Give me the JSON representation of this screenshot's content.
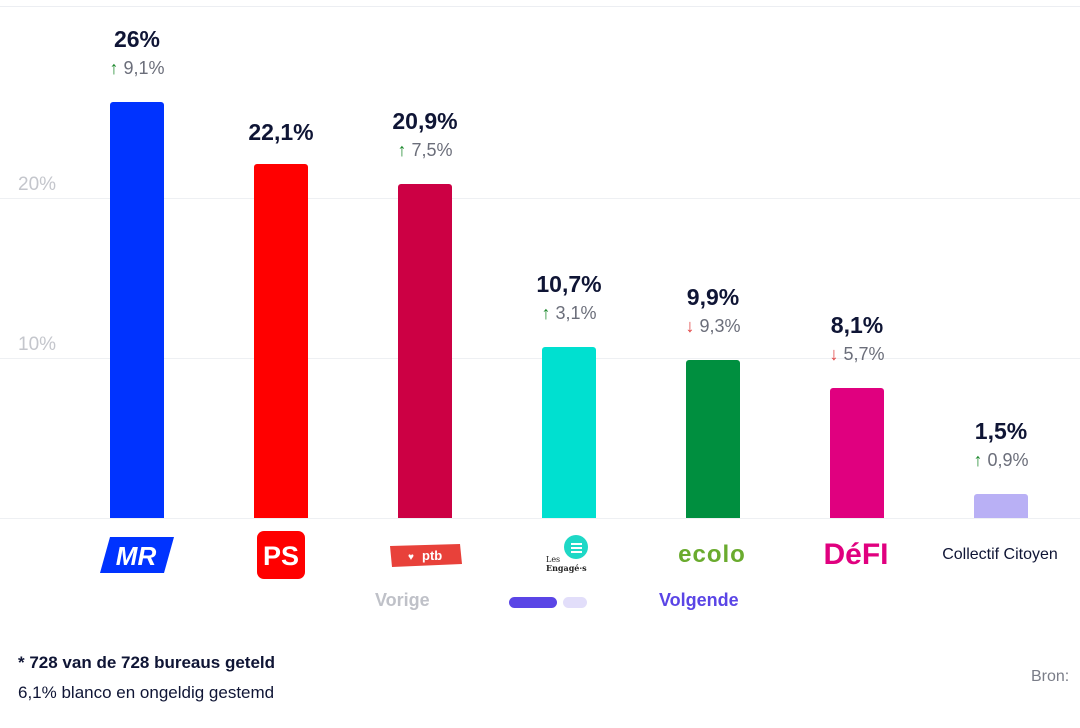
{
  "chart_data": {
    "type": "bar",
    "categories": [
      "MR",
      "PS",
      "PTB",
      "Les Engagés",
      "Ecolo",
      "DéFI",
      "Collectief Citoyen"
    ],
    "values": [
      26,
      22.1,
      20.9,
      10.7,
      9.9,
      8.1,
      1.5
    ],
    "value_labels": [
      "26%",
      "22,1%",
      "20,9%",
      "10,7%",
      "9,9%",
      "8,1%",
      "1,5%"
    ],
    "changes": [
      {
        "dir": "up",
        "label": "9,1%"
      },
      null,
      {
        "dir": "up",
        "label": "7,5%"
      },
      {
        "dir": "up",
        "label": "3,1%"
      },
      {
        "dir": "down",
        "label": "9,3%"
      },
      {
        "dir": "down",
        "label": "5,7%"
      },
      {
        "dir": "up",
        "label": "0,9%"
      }
    ],
    "colors": [
      "#0033ff",
      "#ff0000",
      "#cc0044",
      "#00e0d0",
      "#008f3f",
      "#e0007f",
      "#b9b0f5"
    ],
    "yticks": [
      {
        "value": 10,
        "label": "10%"
      },
      {
        "value": 20,
        "label": "20%"
      }
    ],
    "ylim": [
      0,
      30
    ],
    "grid": true
  },
  "logos": {
    "mr": "MR",
    "ps": "PS",
    "ptb": "ptb",
    "engages": "Les Engagés",
    "ecolo": "ecolo",
    "defi": "DéFI",
    "collectif": "Collectif Citoyen"
  },
  "nav": {
    "prev": "Vorige",
    "next": "Volgende",
    "accent": "#5a45e6"
  },
  "footer": {
    "counted": "* 728 van de 728 bureaus geteld",
    "blank": "6,1% blanco en ongeldig gestemd",
    "source": "Bron:"
  },
  "arrows": {
    "up": "↑",
    "down": "↓"
  }
}
